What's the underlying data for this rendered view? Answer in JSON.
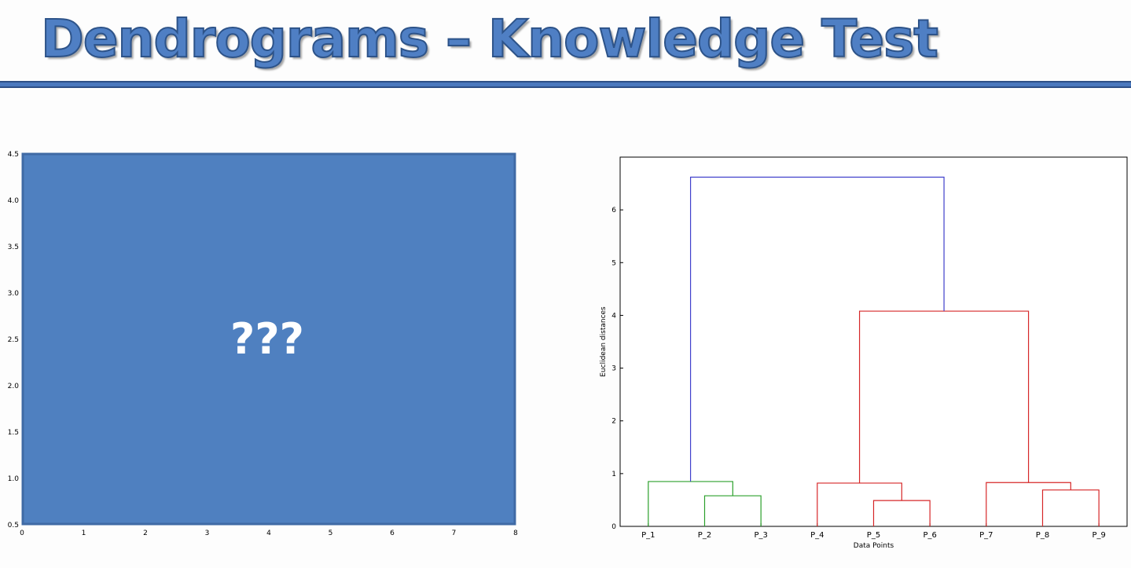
{
  "title": "Dendrograms – Knowledge Test",
  "chart_data": [
    {
      "type": "scatter",
      "xlim": [
        0,
        8
      ],
      "ylim": [
        0.5,
        4.5
      ],
      "xticks": [
        "0",
        "1",
        "2",
        "3",
        "4",
        "5",
        "6",
        "7",
        "8"
      ],
      "yticks": [
        "0.5",
        "1.0",
        "1.5",
        "2.0",
        "2.5",
        "3.0",
        "3.5",
        "4.0",
        "4.5"
      ],
      "overlay": {
        "text": "???",
        "color": "#4f80c0"
      },
      "points": []
    },
    {
      "type": "dendrogram",
      "xlabel": "Data Points",
      "ylabel": "Euclidean distances",
      "ylim": [
        0,
        7
      ],
      "yticks": [
        "0",
        "1",
        "2",
        "3",
        "4",
        "5",
        "6"
      ],
      "leaves": [
        "P_1",
        "P_2",
        "P_3",
        "P_4",
        "P_5",
        "P_6",
        "P_7",
        "P_8",
        "P_9"
      ],
      "links": [
        {
          "left": "P_2",
          "right": "P_3",
          "height": 0.58,
          "color": "#2ca02c"
        },
        {
          "left": "P_1",
          "right": "P_2+P_3",
          "height": 0.85,
          "color": "#2ca02c"
        },
        {
          "left": "P_5",
          "right": "P_6",
          "height": 0.49,
          "color": "#d62728"
        },
        {
          "left": "P_4",
          "right": "P_5+P_6",
          "height": 0.82,
          "color": "#d62728"
        },
        {
          "left": "P_8",
          "right": "P_9",
          "height": 0.69,
          "color": "#d62728"
        },
        {
          "left": "P_7",
          "right": "P_8+P_9",
          "height": 0.83,
          "color": "#d62728"
        },
        {
          "left": "P_4..P_6",
          "right": "P_7..P_9",
          "height": 4.08,
          "color": "#d62728"
        },
        {
          "left": "P_1..P_3",
          "right": "P_4..P_9",
          "height": 6.62,
          "color": "#4040cc"
        }
      ]
    }
  ]
}
